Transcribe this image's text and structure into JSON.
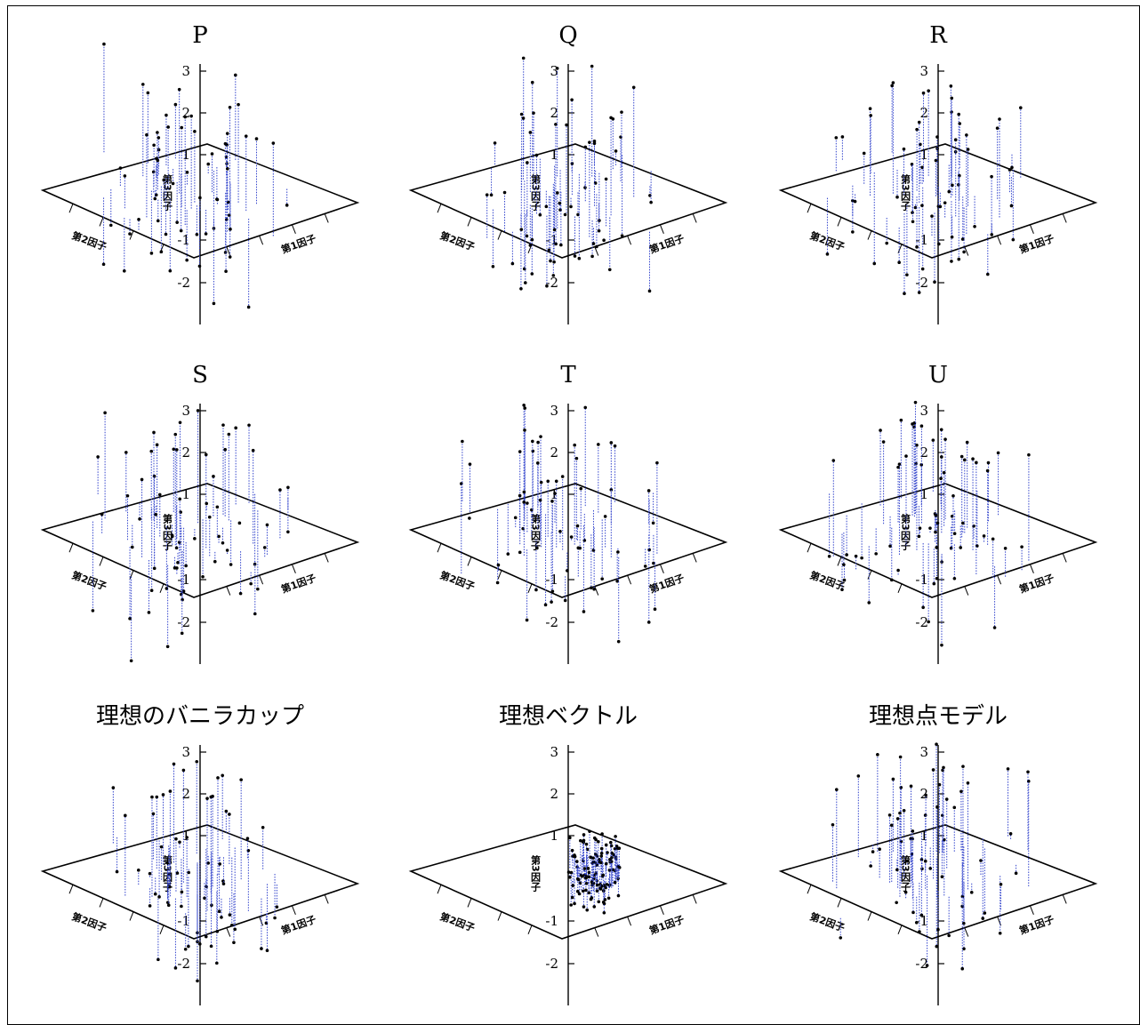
{
  "chart_data": [
    {
      "type": "scatter3d",
      "title": "P",
      "z_ticks": [
        "3",
        "2",
        "1",
        "-1",
        "-2"
      ],
      "x_axis_label": "第1因子",
      "y_axis_label": "第2因子",
      "z_axis_label": "第3因子",
      "spike_color": "#3344cc",
      "spread": "wide"
    },
    {
      "type": "scatter3d",
      "title": "Q",
      "z_ticks": [
        "3",
        "2",
        "1",
        "-1",
        "-2"
      ],
      "x_axis_label": "第1因子",
      "y_axis_label": "第2因子",
      "z_axis_label": "第3因子",
      "spike_color": "#3344cc",
      "spread": "wide"
    },
    {
      "type": "scatter3d",
      "title": "R",
      "z_ticks": [
        "3",
        "2",
        "1",
        "-1",
        "-2"
      ],
      "x_axis_label": "第1因子",
      "y_axis_label": "第2因子",
      "z_axis_label": "第3因子",
      "spike_color": "#3344cc",
      "spread": "wide"
    },
    {
      "type": "scatter3d",
      "title": "S",
      "z_ticks": [
        "3",
        "2",
        "1",
        "-1",
        "-2"
      ],
      "x_axis_label": "第1因子",
      "y_axis_label": "第2因子",
      "z_axis_label": "第3因子",
      "spike_color": "#3344cc",
      "spread": "wide"
    },
    {
      "type": "scatter3d",
      "title": "T",
      "z_ticks": [
        "3",
        "2",
        "1",
        "-1",
        "-2"
      ],
      "x_axis_label": "第1因子",
      "y_axis_label": "第2因子",
      "z_axis_label": "第3因子",
      "spike_color": "#3344cc",
      "spread": "wide"
    },
    {
      "type": "scatter3d",
      "title": "U",
      "z_ticks": [
        "3",
        "2",
        "1",
        "-1",
        "-2"
      ],
      "x_axis_label": "第1因子",
      "y_axis_label": "第2因子",
      "z_axis_label": "第3因子",
      "spike_color": "#3344cc",
      "spread": "wide"
    },
    {
      "type": "scatter3d",
      "title": "理想のバニラカップ",
      "z_ticks": [
        "3",
        "2",
        "1",
        "-1",
        "-2"
      ],
      "x_axis_label": "第1因子",
      "y_axis_label": "第2因子",
      "z_axis_label": "第3因子",
      "spike_color": "#3344cc",
      "spread": "wide"
    },
    {
      "type": "scatter3d",
      "title": "理想ベクトル",
      "z_ticks": [
        "3",
        "2",
        "1",
        "-1",
        "-2"
      ],
      "x_axis_label": "第1因子",
      "y_axis_label": "第2因子",
      "z_axis_label": "第3因子",
      "spike_color": "#3344cc",
      "spread": "tight"
    },
    {
      "type": "scatter3d",
      "title": "理想点モデル",
      "z_ticks": [
        "3",
        "2",
        "1",
        "-1",
        "-2"
      ],
      "x_axis_label": "第1因子",
      "y_axis_label": "第2因子",
      "z_axis_label": "第3因子",
      "spike_color": "#3344cc",
      "spread": "wide"
    }
  ]
}
